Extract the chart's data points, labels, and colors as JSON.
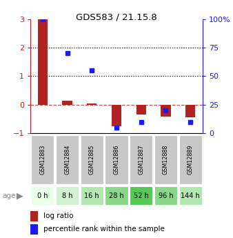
{
  "title": "GDS583 / 21.15.8",
  "samples": [
    "GSM12883",
    "GSM12884",
    "GSM12885",
    "GSM12886",
    "GSM12887",
    "GSM12888",
    "GSM12889"
  ],
  "ages": [
    "0 h",
    "8 h",
    "16 h",
    "28 h",
    "52 h",
    "96 h",
    "144 h"
  ],
  "log_ratio": [
    3.0,
    0.15,
    0.05,
    -0.75,
    -0.35,
    -0.42,
    -0.45
  ],
  "percentile_rank": [
    100,
    70,
    55,
    5,
    10,
    20,
    10
  ],
  "bar_color": "#b22222",
  "square_color": "#1a1aff",
  "ylim_left": [
    -1,
    3
  ],
  "ylim_right": [
    0,
    100
  ],
  "yticks_left": [
    -1,
    0,
    1,
    2,
    3
  ],
  "yticks_right": [
    0,
    25,
    50,
    75,
    100
  ],
  "yticklabels_right": [
    "0",
    "25",
    "50",
    "75",
    "100%"
  ],
  "hline_dotted": [
    1,
    2
  ],
  "hline_dashed": 0,
  "sample_bg_color": "#c8c8c8",
  "age_colors": [
    "#e8ffe8",
    "#d0f0d0",
    "#b0e8b0",
    "#88d888",
    "#55c855",
    "#88d888",
    "#b0e8b0"
  ]
}
